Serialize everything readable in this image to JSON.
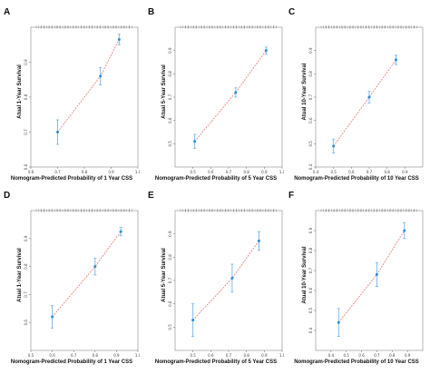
{
  "chart_data": [
    {
      "panel": "A",
      "type": "scatter",
      "xlabel": "Nomogram-Predicted Probability of 1 Year CSS",
      "ylabel": "Atual 1-Year Survival",
      "xlim": [
        0.6,
        1.0
      ],
      "ylim": [
        0.6,
        1.0
      ],
      "xticks": [
        "0.6",
        "0.7",
        "0.8",
        "0.9",
        "1.0"
      ],
      "yticks": [
        "0.6",
        "0.7",
        "0.8",
        "0.9"
      ],
      "points": [
        {
          "x": 0.7,
          "y": 0.7,
          "lo": 0.665,
          "hi": 0.735
        },
        {
          "x": 0.86,
          "y": 0.86,
          "lo": 0.835,
          "hi": 0.885
        },
        {
          "x": 0.93,
          "y": 0.965,
          "lo": 0.95,
          "hi": 0.98
        }
      ],
      "accent": "#2b8fd6",
      "line_color": "#e8766f"
    },
    {
      "panel": "B",
      "type": "scatter",
      "xlabel": "Nomogram-Predicted Probability of 5 Year CSS",
      "ylabel": "Atual 5-Year Survival",
      "xlim": [
        0.4,
        1.0
      ],
      "ylim": [
        0.4,
        1.0
      ],
      "xticks": [
        "0.5",
        "0.6",
        "0.7",
        "0.8",
        "0.9",
        "1.0"
      ],
      "yticks": [
        "0.5",
        "0.6",
        "0.7",
        "0.8",
        "0.9"
      ],
      "points": [
        {
          "x": 0.51,
          "y": 0.51,
          "lo": 0.48,
          "hi": 0.54
        },
        {
          "x": 0.74,
          "y": 0.72,
          "lo": 0.7,
          "hi": 0.74
        },
        {
          "x": 0.91,
          "y": 0.9,
          "lo": 0.885,
          "hi": 0.915
        }
      ],
      "accent": "#2b8fd6",
      "line_color": "#e8766f"
    },
    {
      "panel": "C",
      "type": "scatter",
      "xlabel": "Nomogram-Predicted Probability of 10 Year CSS",
      "ylabel": "Atual 10-Year Survival",
      "xlim": [
        0.4,
        1.0
      ],
      "ylim": [
        0.4,
        1.0
      ],
      "xticks": [
        "0.4",
        "0.5",
        "0.6",
        "0.7",
        "0.8",
        "0.9"
      ],
      "yticks": [
        "0.4",
        "0.5",
        "0.6",
        "0.7",
        "0.8",
        "0.9"
      ],
      "points": [
        {
          "x": 0.5,
          "y": 0.49,
          "lo": 0.46,
          "hi": 0.52
        },
        {
          "x": 0.7,
          "y": 0.7,
          "lo": 0.675,
          "hi": 0.725
        },
        {
          "x": 0.85,
          "y": 0.86,
          "lo": 0.84,
          "hi": 0.88
        }
      ],
      "accent": "#2b8fd6",
      "line_color": "#e8766f"
    },
    {
      "panel": "D",
      "type": "scatter",
      "xlabel": "Nomogram-Predicted Probability of 1 Year CSS",
      "ylabel": "Atual 1-Year Survival",
      "xlim": [
        0.5,
        1.0
      ],
      "ylim": [
        0.5,
        1.0
      ],
      "xticks": [
        "0.5",
        "0.6",
        "0.7",
        "0.8",
        "0.9",
        "1.0"
      ],
      "yticks": [
        "0.6",
        "0.7",
        "0.8",
        "0.9"
      ],
      "points": [
        {
          "x": 0.6,
          "y": 0.62,
          "lo": 0.58,
          "hi": 0.66
        },
        {
          "x": 0.8,
          "y": 0.8,
          "lo": 0.77,
          "hi": 0.83
        },
        {
          "x": 0.92,
          "y": 0.925,
          "lo": 0.91,
          "hi": 0.94
        }
      ],
      "accent": "#2b8fd6",
      "line_color": "#e8766f"
    },
    {
      "panel": "E",
      "type": "scatter",
      "xlabel": "Nomogram-Predicted Probability of 5 Year CSS",
      "ylabel": "Atual 5-Year Survival",
      "xlim": [
        0.4,
        1.0
      ],
      "ylim": [
        0.4,
        1.0
      ],
      "xticks": [
        "0.5",
        "0.6",
        "0.7",
        "0.8",
        "0.9",
        "1.0"
      ],
      "yticks": [
        "0.5",
        "0.6",
        "0.7",
        "0.8",
        "0.9"
      ],
      "points": [
        {
          "x": 0.5,
          "y": 0.53,
          "lo": 0.46,
          "hi": 0.6
        },
        {
          "x": 0.72,
          "y": 0.71,
          "lo": 0.65,
          "hi": 0.77
        },
        {
          "x": 0.87,
          "y": 0.87,
          "lo": 0.83,
          "hi": 0.91
        }
      ],
      "accent": "#2b8fd6",
      "line_color": "#e8766f"
    },
    {
      "panel": "F",
      "type": "scatter",
      "xlabel": "Nomogram-Predicted Probability of 10 Year CSS",
      "ylabel": "Atual 10-Year Survival",
      "xlim": [
        0.3,
        1.0
      ],
      "ylim": [
        0.3,
        1.0
      ],
      "xticks": [
        "0.4",
        "0.5",
        "0.6",
        "0.7",
        "0.8",
        "0.9"
      ],
      "yticks": [
        "0.4",
        "0.5",
        "0.6",
        "0.7",
        "0.8",
        "0.9"
      ],
      "points": [
        {
          "x": 0.45,
          "y": 0.44,
          "lo": 0.37,
          "hi": 0.51
        },
        {
          "x": 0.7,
          "y": 0.68,
          "lo": 0.62,
          "hi": 0.74
        },
        {
          "x": 0.88,
          "y": 0.9,
          "lo": 0.86,
          "hi": 0.94
        }
      ],
      "accent": "#2b8fd6",
      "line_color": "#e8766f"
    }
  ]
}
